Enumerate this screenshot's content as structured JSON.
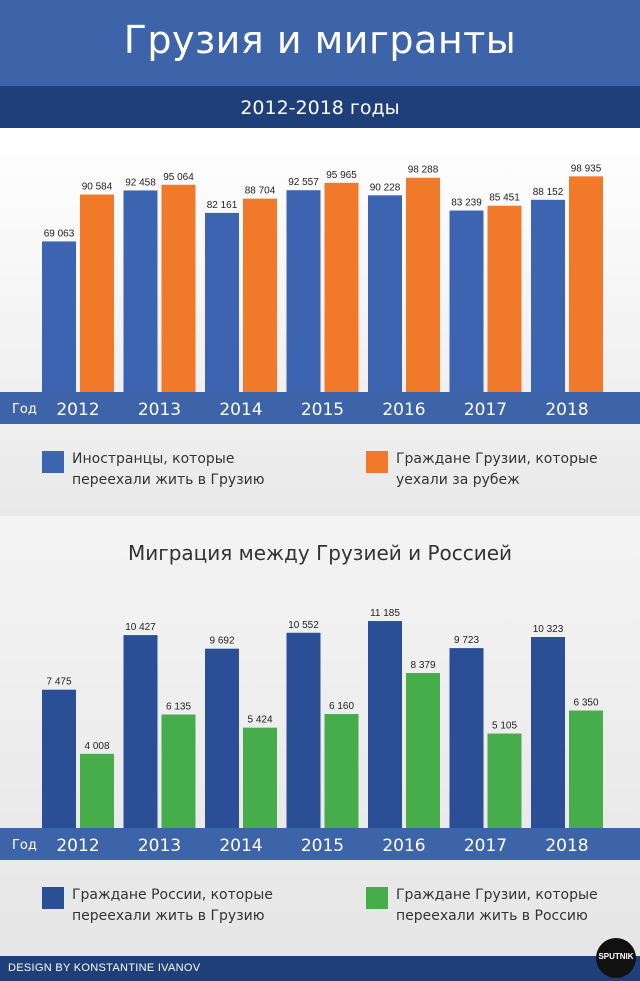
{
  "header": {
    "title": "Грузия и мигранты",
    "subtitle": "2012-2018 годы"
  },
  "colors": {
    "blue": "#3d64b0",
    "darkblue": "#1f3f7a",
    "orange": "#f07a2a",
    "green": "#46ad4a",
    "axis_band": "#3d64a8"
  },
  "year_axis_label": "Год",
  "chart_data": [
    {
      "type": "bar",
      "categories": [
        "2012",
        "2013",
        "2014",
        "2015",
        "2016",
        "2017",
        "2018"
      ],
      "series": [
        {
          "name": "Иностранцы, которые переехали жить в Грузию",
          "values": [
            69063,
            92458,
            82161,
            92557,
            90228,
            83239,
            88152
          ],
          "labels": [
            "69 063",
            "92 458",
            "82 161",
            "92 557",
            "90 228",
            "83 239",
            "88 152"
          ]
        },
        {
          "name": "Граждане Грузии, которые уехали за рубеж",
          "values": [
            90584,
            95064,
            88704,
            95965,
            98288,
            85451,
            98935
          ],
          "labels": [
            "90 584",
            "95 064",
            "88 704",
            "95 965",
            "98 288",
            "85 451",
            "98 935"
          ]
        }
      ],
      "ylim": [
        0,
        100000
      ]
    },
    {
      "type": "bar",
      "title": "Миграция между Грузией и Россией",
      "categories": [
        "2012",
        "2013",
        "2014",
        "2015",
        "2016",
        "2017",
        "2018"
      ],
      "series": [
        {
          "name": "Граждане России, которые переехали жить в Грузию",
          "values": [
            7475,
            10427,
            9692,
            10552,
            11185,
            9723,
            10323
          ],
          "labels": [
            "7 475",
            "10 427",
            "9 692",
            "10 552",
            "11 185",
            "9 723",
            "10 323"
          ]
        },
        {
          "name": "Граждане Грузии, которые переехали жить в Россию",
          "values": [
            4008,
            6135,
            5424,
            6160,
            8379,
            5105,
            6350
          ],
          "labels": [
            "4 008",
            "6 135",
            "5 424",
            "6 160",
            "8 379",
            "5 105",
            "6 350"
          ]
        }
      ],
      "ylim": [
        0,
        12000
      ]
    }
  ],
  "legend1": {
    "left": "Иностранцы, которые переехали жить в Грузию",
    "right": "Граждане Грузии, которые уехали за рубеж"
  },
  "legend2": {
    "left": "Граждане России, которые переехали жить в Грузию",
    "right": "Граждане Грузии, которые переехали жить в Россию"
  },
  "footer": {
    "credit": "DESIGN BY KONSTANTINE IVANOV",
    "logo": "SPUTNIK"
  }
}
